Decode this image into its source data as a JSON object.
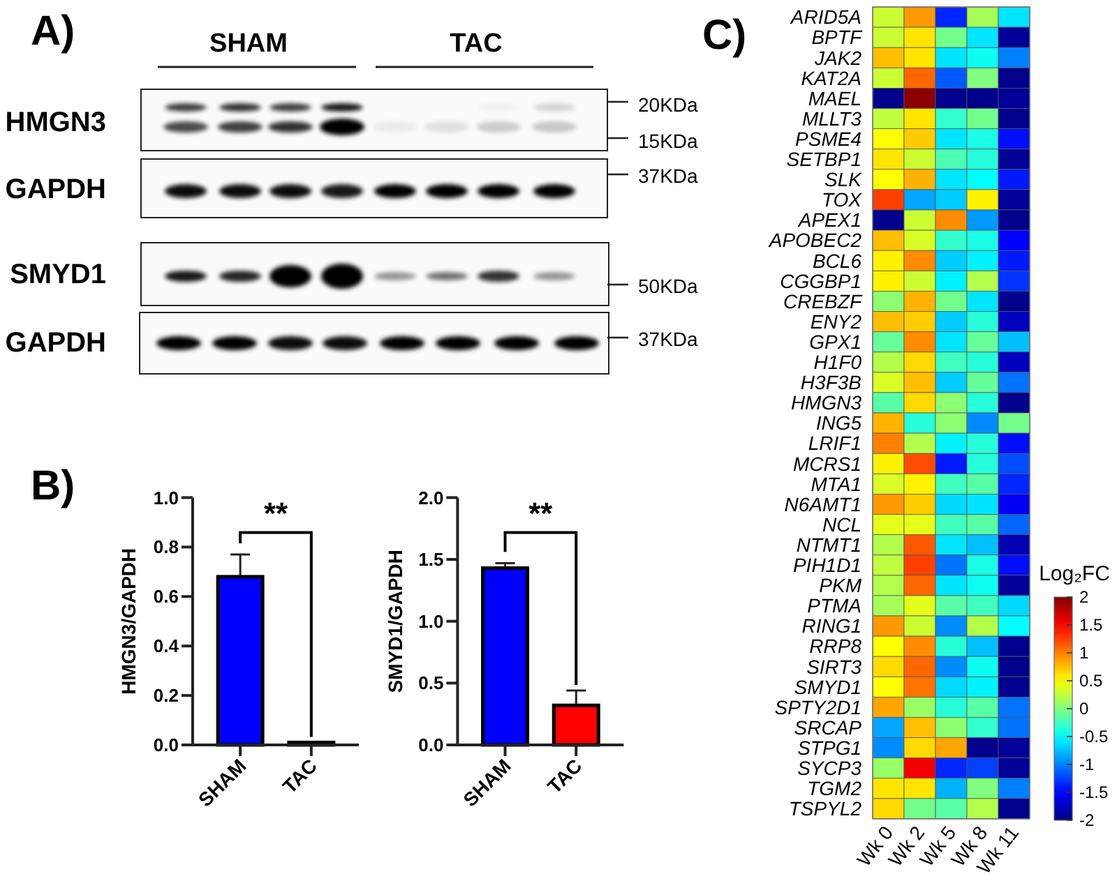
{
  "chart_data": [
    {
      "type": "other",
      "title": "A)",
      "annotations": [
        "SHAM",
        "TAC",
        "HMGN3",
        "GAPDH",
        "SMYD1",
        "GAPDH",
        "20KDa",
        "15KDa",
        "37KDa",
        "50KDa",
        "37KDa"
      ]
    },
    {
      "type": "bar",
      "title": "B)",
      "categories": [
        "SHAM",
        "TAC"
      ],
      "values": [
        0.68,
        0.01
      ],
      "colors": [
        "#0000ff",
        "#ff0000"
      ],
      "errors": [
        [
          0.68,
          0.77
        ],
        null
      ],
      "ylim": [
        0,
        1
      ],
      "yticks": [
        {
          "value": 0,
          "label": "0.0"
        },
        0.2,
        0.4,
        0.6,
        0.8,
        {
          "value": 1,
          "label": "1.0"
        }
      ],
      "ylabel": "HMGN3/GAPDH",
      "annotations": [
        "**"
      ]
    },
    {
      "type": "bar",
      "categories": [
        "SHAM",
        "TAC"
      ],
      "values": [
        1.43,
        0.32
      ],
      "colors": [
        "#0000ff",
        "#ff0000"
      ],
      "errors": [
        [
          1.43,
          1.47
        ],
        [
          0.32,
          0.44
        ]
      ],
      "ylim": [
        0,
        2
      ],
      "yticks": [
        {
          "value": 0,
          "label": "0.0"
        },
        0.5,
        {
          "value": 1,
          "label": "1.0"
        },
        1.5,
        {
          "value": 2,
          "label": "2.0"
        }
      ],
      "ylabel": "SMYD1/GAPDH",
      "annotations": [
        "**"
      ]
    },
    {
      "type": "heatmap",
      "title": "C)",
      "clabel": "Log₂FC",
      "categories": [
        "Wk 0",
        "Wk 2",
        "Wk 5",
        "Wk 8",
        "Wk 11"
      ],
      "y_categories": [
        "ARID5A",
        "BPTF",
        "JAK2",
        "KAT2A",
        "MAEL",
        "MLLT3",
        "PSME4",
        "SETBP1",
        "SLK",
        "TOX",
        "APEX1",
        "APOBEC2",
        "BCL6",
        "CGGBP1",
        "CREBZF",
        "ENY2",
        "GPX1",
        "H1F0",
        "H3F3B",
        "HMGN3",
        "ING5",
        "LRIF1",
        "MCRS1",
        "MTA1",
        "N6AMT1",
        "NCL",
        "NTMT1",
        "PIH1D1",
        "PKM",
        "PTMA",
        "RING1",
        "RRP8",
        "SIRT3",
        "SMYD1",
        "SPTY2D1",
        "SRCAP",
        "STPG1",
        "SYCP3",
        "TGM2",
        "TSPYL2"
      ],
      "cells": [
        [
          0.3,
          0.9,
          -1.35,
          0.15,
          -0.6
        ],
        [
          0.3,
          0.6,
          -0.05,
          -0.6,
          -1.9
        ],
        [
          0.75,
          0.6,
          -0.6,
          -0.45,
          -1.0
        ],
        [
          0.3,
          1.1,
          -1.15,
          0.0,
          -1.95
        ],
        [
          -1.95,
          1.95,
          -1.95,
          -1.95,
          -1.9
        ],
        [
          0.25,
          0.6,
          -0.3,
          -0.05,
          -1.95
        ],
        [
          0.5,
          0.7,
          -0.6,
          -0.4,
          -1.45
        ],
        [
          0.6,
          0.3,
          -0.2,
          -0.35,
          -1.9
        ],
        [
          0.5,
          0.8,
          -0.6,
          -0.5,
          -1.4
        ],
        [
          1.25,
          -0.85,
          -0.7,
          0.55,
          -1.9
        ],
        [
          -1.95,
          0.3,
          0.95,
          -0.9,
          -1.95
        ],
        [
          0.75,
          0.35,
          -0.3,
          -0.4,
          -1.5
        ],
        [
          0.55,
          0.95,
          -0.7,
          -0.55,
          -1.4
        ],
        [
          0.55,
          0.3,
          -0.55,
          0.2,
          -1.3
        ],
        [
          0.05,
          0.8,
          -0.05,
          -0.6,
          -1.95
        ],
        [
          0.75,
          0.7,
          -0.7,
          -0.35,
          -1.75
        ],
        [
          -0.1,
          0.95,
          -0.6,
          -0.1,
          -0.75
        ],
        [
          0.2,
          0.65,
          -0.25,
          -0.35,
          -1.75
        ],
        [
          0.35,
          0.75,
          -0.7,
          -0.1,
          -1.05
        ],
        [
          -0.15,
          0.65,
          0.05,
          -0.35,
          -1.95
        ],
        [
          0.8,
          -0.35,
          0.05,
          -0.95,
          -0.05
        ],
        [
          1.0,
          0.2,
          -0.55,
          -0.35,
          -1.45
        ],
        [
          0.55,
          1.2,
          -1.4,
          -0.35,
          -1.2
        ],
        [
          0.35,
          0.55,
          -0.25,
          -0.15,
          -1.35
        ],
        [
          0.9,
          0.7,
          -0.65,
          -0.6,
          -1.55
        ],
        [
          0.4,
          0.4,
          -0.25,
          -0.15,
          -1.1
        ],
        [
          0.2,
          1.15,
          -0.6,
          -0.75,
          -1.8
        ],
        [
          0.25,
          1.25,
          -1.05,
          -0.4,
          -1.45
        ],
        [
          0.2,
          1.1,
          -0.6,
          -0.45,
          -1.9
        ],
        [
          0.15,
          0.4,
          -0.15,
          -0.25,
          -0.65
        ],
        [
          0.9,
          0.3,
          -0.95,
          0.2,
          -0.5
        ],
        [
          0.5,
          0.95,
          -0.35,
          -0.75,
          -1.95
        ],
        [
          0.65,
          1.1,
          -0.95,
          -0.45,
          -1.95
        ],
        [
          0.5,
          1.05,
          -0.65,
          -0.55,
          -1.95
        ],
        [
          0.85,
          0.1,
          -0.35,
          -0.15,
          -1.05
        ],
        [
          -0.85,
          0.75,
          0.05,
          -0.3,
          -1.05
        ],
        [
          -0.95,
          0.65,
          0.85,
          -1.95,
          -1.9
        ],
        [
          0.1,
          1.55,
          -1.35,
          -1.25,
          -1.9
        ],
        [
          0.6,
          0.6,
          -0.8,
          0.0,
          -1.0
        ],
        [
          0.65,
          -0.05,
          -0.15,
          0.2,
          -1.95
        ]
      ],
      "clim": [
        -2,
        2
      ],
      "cticks": [
        -2,
        -1.5,
        -1,
        -0.5,
        0,
        0.5,
        1,
        1.5,
        2
      ]
    }
  ]
}
